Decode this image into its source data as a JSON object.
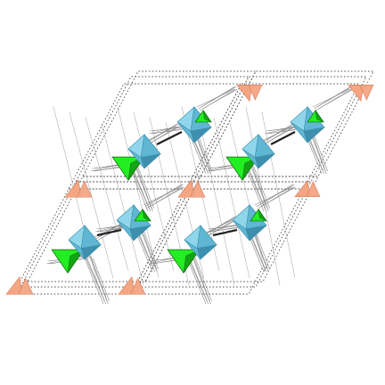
{
  "structure": {
    "unit_cells": 4,
    "colors": {
      "background": "#ffffff",
      "cell_edge": "#555555",
      "bond": "#888888",
      "octahedron_light": "#8fd6ea",
      "octahedron_mid": "#5fb7d3",
      "octahedron_dark": "#3d8fae",
      "tetra_green": "#22ee22",
      "tetra_green_dark": "#119911",
      "triangle_salmon": "#f4a582",
      "triangle_salmon_dark": "#d67a5c",
      "link": "#222222"
    }
  }
}
